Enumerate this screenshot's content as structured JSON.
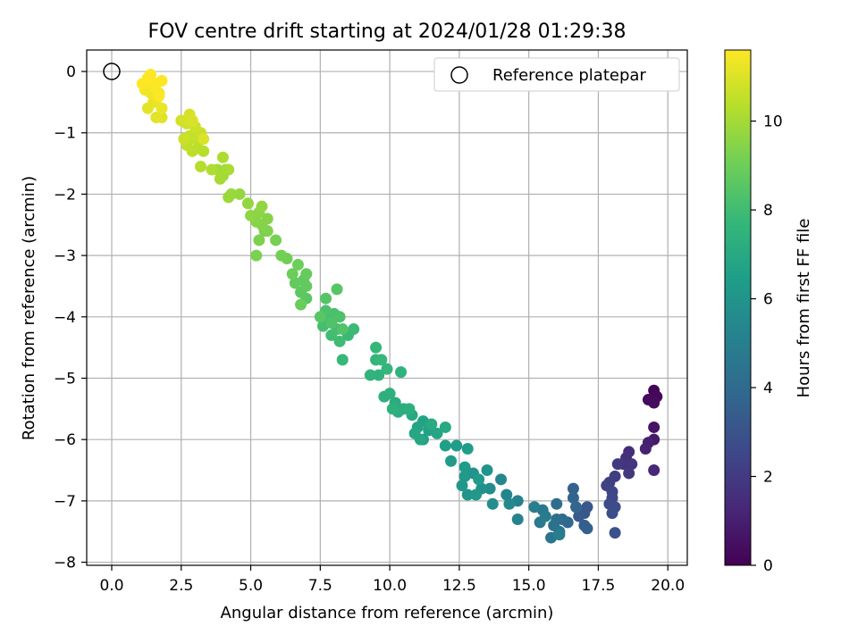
{
  "chart_data": {
    "type": "scatter",
    "title": "FOV centre drift starting at 2024/01/28 01:29:38",
    "xlabel": "Angular distance from reference (arcmin)",
    "ylabel": "Rotation from reference (arcmin)",
    "xlim": [
      -0.9,
      20.7
    ],
    "ylim": [
      -8.05,
      0.35
    ],
    "xticks": [
      0.0,
      2.5,
      5.0,
      7.5,
      10.0,
      12.5,
      15.0,
      17.5,
      20.0
    ],
    "xtick_labels": [
      "0.0",
      "2.5",
      "5.0",
      "7.5",
      "10.0",
      "12.5",
      "15.0",
      "17.5",
      "20.0"
    ],
    "yticks": [
      0,
      -1,
      -2,
      -3,
      -4,
      -5,
      -6,
      -7,
      -8
    ],
    "ytick_labels": [
      "0",
      "−1",
      "−2",
      "−3",
      "−4",
      "−5",
      "−6",
      "−7",
      "−8"
    ],
    "grid": true,
    "legend": {
      "placement": "top-right",
      "entries": [
        {
          "label": "Reference platepar",
          "marker": "open-circle"
        }
      ]
    },
    "reference_point": {
      "x": 0.0,
      "y": 0.0
    },
    "colorbar": {
      "label": "Hours from first FF file",
      "range": [
        0,
        11.6
      ],
      "ticks": [
        0,
        2,
        4,
        6,
        8,
        10
      ],
      "tick_labels": [
        "0",
        "2",
        "4",
        "6",
        "8",
        "10"
      ],
      "colormap": "viridis",
      "colors": [
        "#440154",
        "#482878",
        "#3e4989",
        "#31688e",
        "#26828e",
        "#1f9e89",
        "#35b779",
        "#6ece58",
        "#b5de2b",
        "#fde725"
      ]
    },
    "series": [
      {
        "points": [
          [
            19.5,
            -5.2,
            0.1
          ],
          [
            19.6,
            -5.3,
            0.2
          ],
          [
            19.3,
            -5.35,
            0.3
          ],
          [
            19.5,
            -5.4,
            0.4
          ],
          [
            19.5,
            -5.8,
            0.6
          ],
          [
            19.5,
            -6.0,
            0.8
          ],
          [
            19.3,
            -6.05,
            1.0
          ],
          [
            19.2,
            -6.15,
            1.1
          ],
          [
            19.5,
            -6.5,
            1.3
          ],
          [
            18.6,
            -6.2,
            1.5
          ],
          [
            18.5,
            -6.3,
            1.6
          ],
          [
            18.4,
            -6.4,
            1.7
          ],
          [
            18.7,
            -6.4,
            1.8
          ],
          [
            18.6,
            -6.55,
            1.9
          ],
          [
            18.2,
            -6.4,
            2.0
          ],
          [
            18.1,
            -6.6,
            2.1
          ],
          [
            17.9,
            -6.7,
            2.2
          ],
          [
            17.8,
            -6.75,
            2.3
          ],
          [
            18.0,
            -6.85,
            2.4
          ],
          [
            18.0,
            -6.95,
            2.5
          ],
          [
            17.9,
            -7.05,
            2.6
          ],
          [
            18.1,
            -7.1,
            2.7
          ],
          [
            18.0,
            -7.2,
            2.8
          ],
          [
            18.1,
            -7.52,
            2.9
          ],
          [
            17.1,
            -7.1,
            3.1
          ],
          [
            17.0,
            -7.2,
            3.2
          ],
          [
            16.8,
            -7.25,
            3.3
          ],
          [
            17.0,
            -7.4,
            3.4
          ],
          [
            17.1,
            -7.45,
            3.5
          ],
          [
            16.6,
            -6.8,
            3.6
          ],
          [
            16.6,
            -6.95,
            3.7
          ],
          [
            16.7,
            -7.1,
            3.8
          ],
          [
            16.4,
            -7.35,
            3.9
          ],
          [
            16.2,
            -7.3,
            4.0
          ],
          [
            16.0,
            -7.05,
            4.1
          ],
          [
            16.0,
            -7.3,
            4.2
          ],
          [
            15.9,
            -7.4,
            4.3
          ],
          [
            16.1,
            -7.5,
            4.4
          ],
          [
            15.8,
            -7.6,
            4.5
          ],
          [
            15.5,
            -7.15,
            4.6
          ],
          [
            15.4,
            -7.35,
            4.7
          ],
          [
            15.6,
            -7.25,
            4.8
          ],
          [
            16.1,
            -7.55,
            4.9
          ],
          [
            15.2,
            -7.1,
            5.0
          ],
          [
            14.6,
            -7.0,
            5.1
          ],
          [
            14.6,
            -7.3,
            5.2
          ],
          [
            14.2,
            -6.9,
            5.3
          ],
          [
            14.0,
            -6.65,
            5.4
          ],
          [
            14.3,
            -7.05,
            5.5
          ],
          [
            13.6,
            -6.8,
            5.6
          ],
          [
            13.7,
            -7.05,
            5.7
          ],
          [
            13.3,
            -6.8,
            5.8
          ],
          [
            13.0,
            -6.55,
            5.9
          ],
          [
            13.5,
            -6.5,
            6.0
          ],
          [
            12.8,
            -6.9,
            6.05
          ],
          [
            12.6,
            -6.75,
            6.1
          ],
          [
            13.1,
            -6.9,
            6.15
          ],
          [
            12.7,
            -6.6,
            6.2
          ],
          [
            13.2,
            -6.65,
            6.25
          ],
          [
            12.2,
            -6.35,
            6.3
          ],
          [
            12.7,
            -6.45,
            6.35
          ],
          [
            12.4,
            -6.1,
            6.4
          ],
          [
            12.8,
            -6.15,
            6.45
          ],
          [
            12.0,
            -6.1,
            6.5
          ],
          [
            11.2,
            -6.0,
            6.6
          ],
          [
            11.4,
            -5.85,
            6.65
          ],
          [
            11.2,
            -5.7,
            6.7
          ],
          [
            11.0,
            -5.8,
            6.75
          ],
          [
            11.7,
            -5.9,
            6.8
          ],
          [
            10.9,
            -5.9,
            6.85
          ],
          [
            11.1,
            -6.0,
            6.9
          ],
          [
            12.0,
            -5.8,
            6.95
          ],
          [
            10.8,
            -5.6,
            7.0
          ],
          [
            11.5,
            -5.75,
            7.05
          ],
          [
            10.5,
            -5.5,
            7.1
          ],
          [
            10.2,
            -5.4,
            7.15
          ],
          [
            10.3,
            -5.55,
            7.2
          ],
          [
            10.7,
            -5.5,
            7.25
          ],
          [
            9.8,
            -5.3,
            7.3
          ],
          [
            10.0,
            -5.25,
            7.35
          ],
          [
            10.1,
            -5.5,
            7.4
          ],
          [
            10.4,
            -4.9,
            7.45
          ],
          [
            9.6,
            -4.95,
            7.5
          ],
          [
            9.3,
            -4.95,
            7.55
          ],
          [
            9.5,
            -4.7,
            7.6
          ],
          [
            9.9,
            -4.85,
            7.65
          ],
          [
            9.5,
            -4.5,
            7.7
          ],
          [
            9.7,
            -4.7,
            7.75
          ],
          [
            8.3,
            -4.7,
            7.8
          ],
          [
            8.5,
            -4.3,
            7.85
          ],
          [
            8.7,
            -4.2,
            7.9
          ],
          [
            8.2,
            -4.4,
            7.95
          ],
          [
            7.9,
            -4.3,
            8.0
          ],
          [
            8.1,
            -4.2,
            8.05
          ],
          [
            7.6,
            -4.15,
            8.1
          ],
          [
            7.8,
            -4.05,
            8.15
          ],
          [
            8.0,
            -3.95,
            8.2
          ],
          [
            7.7,
            -3.9,
            8.25
          ],
          [
            8.2,
            -4.0,
            8.3
          ],
          [
            7.9,
            -4.1,
            8.35
          ],
          [
            8.3,
            -4.2,
            8.4
          ],
          [
            7.7,
            -3.7,
            8.45
          ],
          [
            8.1,
            -3.55,
            8.5
          ],
          [
            7.5,
            -4.0,
            8.55
          ],
          [
            7.0,
            -3.7,
            8.6
          ],
          [
            6.8,
            -3.6,
            8.65
          ],
          [
            6.9,
            -3.4,
            8.7
          ],
          [
            7.0,
            -3.5,
            8.75
          ],
          [
            6.6,
            -3.45,
            8.8
          ],
          [
            7.0,
            -3.3,
            8.85
          ],
          [
            6.8,
            -3.8,
            8.9
          ],
          [
            6.5,
            -3.3,
            8.95
          ],
          [
            6.7,
            -3.15,
            9.0
          ],
          [
            6.3,
            -3.05,
            9.05
          ],
          [
            6.1,
            -3.0,
            9.1
          ],
          [
            5.9,
            -2.75,
            9.15
          ],
          [
            5.5,
            -2.6,
            9.2
          ],
          [
            5.2,
            -3.0,
            9.25
          ],
          [
            5.3,
            -2.75,
            9.3
          ],
          [
            5.6,
            -2.6,
            9.35
          ],
          [
            5.4,
            -2.5,
            9.4
          ],
          [
            5.6,
            -2.4,
            9.45
          ],
          [
            5.2,
            -2.45,
            9.5
          ],
          [
            5.3,
            -2.3,
            9.55
          ],
          [
            5.0,
            -2.35,
            9.6
          ],
          [
            5.4,
            -2.2,
            9.65
          ],
          [
            4.9,
            -2.15,
            9.7
          ],
          [
            4.6,
            -2.0,
            9.75
          ],
          [
            4.3,
            -2.0,
            9.8
          ],
          [
            4.2,
            -2.05,
            9.85
          ],
          [
            4.0,
            -1.7,
            9.9
          ],
          [
            4.1,
            -1.6,
            9.95
          ],
          [
            3.8,
            -1.6,
            10.0
          ],
          [
            3.9,
            -1.75,
            10.05
          ],
          [
            4.2,
            -1.6,
            10.1
          ],
          [
            4.0,
            -1.4,
            10.15
          ],
          [
            3.6,
            -1.6,
            10.2
          ],
          [
            3.2,
            -1.55,
            10.3
          ],
          [
            3.3,
            -1.3,
            10.35
          ],
          [
            3.1,
            -1.25,
            10.4
          ],
          [
            2.9,
            -1.3,
            10.45
          ],
          [
            2.7,
            -1.2,
            10.5
          ],
          [
            3.0,
            -1.1,
            10.55
          ],
          [
            2.8,
            -1.05,
            10.6
          ],
          [
            3.2,
            -1.0,
            10.65
          ],
          [
            2.6,
            -1.1,
            10.7
          ],
          [
            3.0,
            -0.9,
            10.75
          ],
          [
            2.7,
            -0.85,
            10.8
          ],
          [
            2.5,
            -0.8,
            10.85
          ],
          [
            2.8,
            -0.7,
            10.9
          ],
          [
            2.9,
            -0.8,
            10.95
          ],
          [
            3.3,
            -1.1,
            11.0
          ],
          [
            1.8,
            -0.75,
            11.05
          ],
          [
            1.6,
            -0.75,
            11.1
          ],
          [
            1.3,
            -0.6,
            11.15
          ],
          [
            1.5,
            -0.5,
            11.2
          ],
          [
            1.8,
            -0.6,
            11.25
          ],
          [
            1.6,
            -0.45,
            11.3
          ],
          [
            1.4,
            -0.35,
            11.35
          ],
          [
            1.2,
            -0.3,
            11.4
          ],
          [
            1.5,
            -0.25,
            11.45
          ],
          [
            1.7,
            -0.35,
            11.5
          ],
          [
            1.4,
            -0.15,
            11.55
          ],
          [
            1.1,
            -0.2,
            11.6
          ],
          [
            1.3,
            -0.1,
            11.6
          ],
          [
            1.6,
            -0.2,
            11.6
          ],
          [
            1.8,
            -0.15,
            11.6
          ],
          [
            1.4,
            -0.05,
            11.6
          ],
          [
            1.7,
            -0.4,
            11.55
          ]
        ]
      }
    ]
  }
}
